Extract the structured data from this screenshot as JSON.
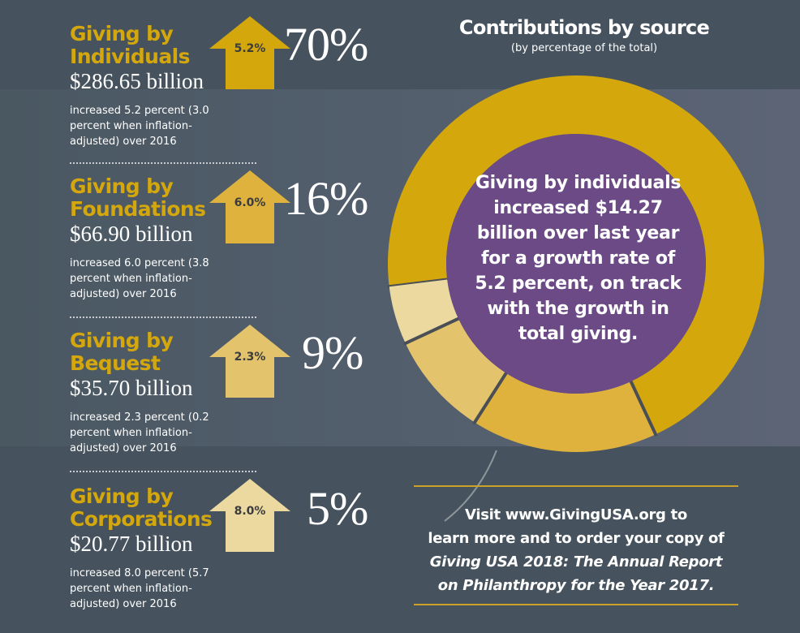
{
  "chart_data": {
    "type": "pie",
    "title": "Contributions by source",
    "subtitle": "(by percentage of the total)",
    "categories": [
      "Giving by Individuals",
      "Giving by Foundations",
      "Giving by Bequest",
      "Giving by Corporations"
    ],
    "values": [
      70,
      16,
      9,
      5
    ],
    "value_labels": [
      "70%",
      "16%",
      "9%",
      "5%"
    ],
    "colors": [
      "#d4a70d",
      "#deb23c",
      "#e3c46c",
      "#ecd9a0"
    ],
    "center_text": "Giving by individuals increased $14.27 billion over last year for a growth rate of 5.2 percent, on track with the growth in total giving.",
    "center_color": "#6b4a86"
  },
  "categories": [
    {
      "title_line1": "Giving by",
      "title_line2": "Individuals",
      "amount": "$286.65 billion",
      "desc_lines": [
        "increased 5.2 percent (3.0",
        "percent when inflation-",
        "adjusted) over 2016"
      ],
      "growth": "5.2%",
      "growth_value": 5.2,
      "share": "70%",
      "arrow_color": "#d4a70d"
    },
    {
      "title_line1": "Giving by",
      "title_line2": "Foundations",
      "amount": "$66.90 billion",
      "desc_lines": [
        "increased 6.0 percent (3.8",
        "percent when inflation-",
        "adjusted) over 2016"
      ],
      "growth": "6.0%",
      "growth_value": 6.0,
      "share": "16%",
      "arrow_color": "#deb23c"
    },
    {
      "title_line1": "Giving by",
      "title_line2": "Bequest",
      "amount": "$35.70 billion",
      "desc_lines": [
        "increased 2.3 percent (0.2",
        "percent when inflation-",
        "adjusted) over 2016"
      ],
      "growth": "2.3%",
      "growth_value": 2.3,
      "share": "9%",
      "arrow_color": "#e3c46c"
    },
    {
      "title_line1": "Giving by",
      "title_line2": "Corporations",
      "amount": "$20.77 billion",
      "desc_lines": [
        "increased 8.0 percent (5.7",
        "percent when inflation-",
        "adjusted) over 2016"
      ],
      "growth": "8.0%",
      "growth_value": 8.0,
      "share": "5%",
      "arrow_color": "#ecd9a0"
    }
  ],
  "visit": {
    "line1": "Visit www.GivingUSA.org to",
    "line2": "learn more and to order your copy of",
    "line3": "Giving USA 2018: The Annual Report",
    "line4": "on Philanthropy for the Year 2017."
  }
}
